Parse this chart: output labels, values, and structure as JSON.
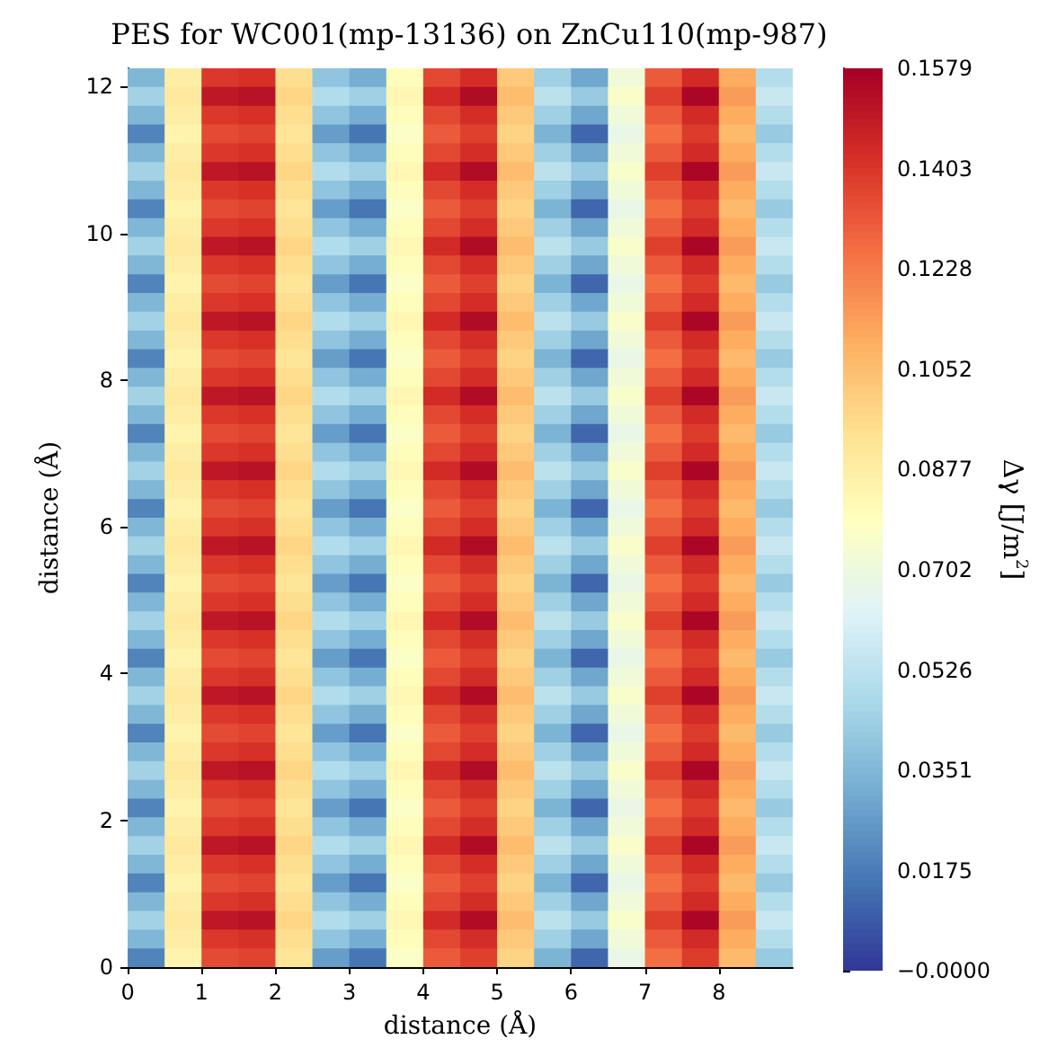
{
  "chart_data": {
    "type": "heatmap",
    "title": "PES for WC001(mp-13136) on ZnCu110(mp-987)",
    "xlabel": "distance (Å)",
    "ylabel": "distance (Å)",
    "clabel": "Δγ [J/m$^{2}$]",
    "xlim": [
      0,
      9.0
    ],
    "ylim": [
      0,
      12.25
    ],
    "xticks": [
      0,
      1,
      2,
      3,
      4,
      5,
      6,
      7,
      8
    ],
    "yticks": [
      0,
      2,
      4,
      6,
      8,
      10,
      12
    ],
    "clim": [
      0,
      0.1579
    ],
    "cticks": [
      {
        "value": 0,
        "label": "−0.0000"
      },
      0.0175,
      0.0351,
      0.0526,
      0.0702,
      0.0877,
      0.1052,
      0.1228,
      0.1403,
      0.1579
    ],
    "cells": [
      [
        0.035,
        0.088,
        0.14,
        0.142,
        0.095,
        0.04,
        0.032,
        0.08,
        0.136,
        0.143,
        0.102,
        0.044,
        0.03,
        0.072,
        0.131,
        0.144,
        0.111,
        0.05
      ],
      [
        0.045,
        0.09,
        0.15,
        0.152,
        0.098,
        0.049,
        0.044,
        0.083,
        0.144,
        0.154,
        0.106,
        0.052,
        0.042,
        0.076,
        0.138,
        0.156,
        0.115,
        0.056
      ],
      [
        0.035,
        0.088,
        0.14,
        0.142,
        0.095,
        0.04,
        0.032,
        0.08,
        0.136,
        0.143,
        0.102,
        0.044,
        0.03,
        0.072,
        0.131,
        0.144,
        0.111,
        0.05
      ],
      [
        0.02,
        0.085,
        0.135,
        0.137,
        0.092,
        0.027,
        0.016,
        0.077,
        0.131,
        0.138,
        0.099,
        0.034,
        0.012,
        0.068,
        0.126,
        0.139,
        0.107,
        0.042
      ],
      [
        0.035,
        0.088,
        0.14,
        0.142,
        0.095,
        0.04,
        0.032,
        0.08,
        0.136,
        0.143,
        0.102,
        0.044,
        0.03,
        0.072,
        0.131,
        0.144,
        0.111,
        0.05
      ],
      [
        0.045,
        0.09,
        0.15,
        0.152,
        0.098,
        0.049,
        0.044,
        0.083,
        0.144,
        0.154,
        0.106,
        0.052,
        0.042,
        0.076,
        0.138,
        0.156,
        0.115,
        0.056
      ],
      [
        0.035,
        0.088,
        0.14,
        0.142,
        0.095,
        0.04,
        0.032,
        0.08,
        0.136,
        0.143,
        0.102,
        0.044,
        0.03,
        0.072,
        0.131,
        0.144,
        0.111,
        0.05
      ],
      [
        0.02,
        0.085,
        0.135,
        0.137,
        0.092,
        0.027,
        0.016,
        0.077,
        0.131,
        0.138,
        0.099,
        0.034,
        0.012,
        0.068,
        0.126,
        0.139,
        0.107,
        0.042
      ],
      [
        0.035,
        0.088,
        0.14,
        0.142,
        0.095,
        0.04,
        0.032,
        0.08,
        0.136,
        0.143,
        0.102,
        0.044,
        0.03,
        0.072,
        0.131,
        0.144,
        0.111,
        0.05
      ],
      [
        0.045,
        0.09,
        0.15,
        0.152,
        0.098,
        0.049,
        0.044,
        0.083,
        0.144,
        0.154,
        0.106,
        0.052,
        0.042,
        0.076,
        0.138,
        0.156,
        0.115,
        0.056
      ],
      [
        0.035,
        0.088,
        0.14,
        0.142,
        0.095,
        0.04,
        0.032,
        0.08,
        0.136,
        0.143,
        0.102,
        0.044,
        0.03,
        0.072,
        0.131,
        0.144,
        0.111,
        0.05
      ],
      [
        0.02,
        0.085,
        0.135,
        0.137,
        0.092,
        0.027,
        0.016,
        0.077,
        0.131,
        0.138,
        0.099,
        0.034,
        0.012,
        0.068,
        0.126,
        0.139,
        0.107,
        0.042
      ],
      [
        0.035,
        0.088,
        0.14,
        0.142,
        0.095,
        0.04,
        0.032,
        0.08,
        0.136,
        0.143,
        0.102,
        0.044,
        0.03,
        0.072,
        0.131,
        0.144,
        0.111,
        0.05
      ],
      [
        0.045,
        0.09,
        0.15,
        0.152,
        0.098,
        0.049,
        0.044,
        0.083,
        0.144,
        0.154,
        0.106,
        0.052,
        0.042,
        0.076,
        0.138,
        0.156,
        0.115,
        0.056
      ],
      [
        0.035,
        0.088,
        0.14,
        0.142,
        0.095,
        0.04,
        0.032,
        0.08,
        0.136,
        0.143,
        0.102,
        0.044,
        0.03,
        0.072,
        0.131,
        0.144,
        0.111,
        0.05
      ],
      [
        0.02,
        0.085,
        0.135,
        0.137,
        0.092,
        0.027,
        0.016,
        0.077,
        0.131,
        0.138,
        0.099,
        0.034,
        0.012,
        0.068,
        0.126,
        0.139,
        0.107,
        0.042
      ],
      [
        0.035,
        0.088,
        0.14,
        0.142,
        0.095,
        0.04,
        0.032,
        0.08,
        0.136,
        0.143,
        0.102,
        0.044,
        0.03,
        0.072,
        0.131,
        0.144,
        0.111,
        0.05
      ],
      [
        0.045,
        0.09,
        0.15,
        0.152,
        0.098,
        0.049,
        0.044,
        0.083,
        0.144,
        0.154,
        0.106,
        0.052,
        0.042,
        0.076,
        0.138,
        0.156,
        0.115,
        0.056
      ],
      [
        0.035,
        0.088,
        0.14,
        0.142,
        0.095,
        0.04,
        0.032,
        0.08,
        0.136,
        0.143,
        0.102,
        0.044,
        0.03,
        0.072,
        0.131,
        0.144,
        0.111,
        0.05
      ],
      [
        0.02,
        0.085,
        0.135,
        0.137,
        0.092,
        0.027,
        0.016,
        0.077,
        0.131,
        0.138,
        0.099,
        0.034,
        0.012,
        0.068,
        0.126,
        0.139,
        0.107,
        0.042
      ],
      [
        0.035,
        0.088,
        0.14,
        0.142,
        0.095,
        0.04,
        0.032,
        0.08,
        0.136,
        0.143,
        0.102,
        0.044,
        0.03,
        0.072,
        0.131,
        0.144,
        0.111,
        0.05
      ],
      [
        0.045,
        0.09,
        0.15,
        0.152,
        0.098,
        0.049,
        0.044,
        0.083,
        0.144,
        0.154,
        0.106,
        0.052,
        0.042,
        0.076,
        0.138,
        0.156,
        0.115,
        0.056
      ],
      [
        0.035,
        0.088,
        0.14,
        0.142,
        0.095,
        0.04,
        0.032,
        0.08,
        0.136,
        0.143,
        0.102,
        0.044,
        0.03,
        0.072,
        0.131,
        0.144,
        0.111,
        0.05
      ],
      [
        0.02,
        0.085,
        0.135,
        0.137,
        0.092,
        0.027,
        0.016,
        0.077,
        0.131,
        0.138,
        0.099,
        0.034,
        0.012,
        0.068,
        0.126,
        0.139,
        0.107,
        0.042
      ],
      [
        0.035,
        0.088,
        0.14,
        0.142,
        0.095,
        0.04,
        0.032,
        0.08,
        0.136,
        0.143,
        0.102,
        0.044,
        0.03,
        0.072,
        0.131,
        0.144,
        0.111,
        0.05
      ],
      [
        0.045,
        0.09,
        0.15,
        0.152,
        0.098,
        0.049,
        0.044,
        0.083,
        0.144,
        0.154,
        0.106,
        0.052,
        0.042,
        0.076,
        0.138,
        0.156,
        0.115,
        0.056
      ],
      [
        0.035,
        0.088,
        0.14,
        0.142,
        0.095,
        0.04,
        0.032,
        0.08,
        0.136,
        0.143,
        0.102,
        0.044,
        0.03,
        0.072,
        0.131,
        0.144,
        0.111,
        0.05
      ],
      [
        0.02,
        0.085,
        0.135,
        0.137,
        0.092,
        0.027,
        0.016,
        0.077,
        0.131,
        0.138,
        0.099,
        0.034,
        0.012,
        0.068,
        0.126,
        0.139,
        0.107,
        0.042
      ],
      [
        0.035,
        0.088,
        0.14,
        0.142,
        0.095,
        0.04,
        0.032,
        0.08,
        0.136,
        0.143,
        0.102,
        0.044,
        0.03,
        0.072,
        0.131,
        0.144,
        0.111,
        0.05
      ],
      [
        0.045,
        0.09,
        0.15,
        0.152,
        0.098,
        0.049,
        0.044,
        0.083,
        0.144,
        0.154,
        0.106,
        0.052,
        0.042,
        0.076,
        0.138,
        0.156,
        0.115,
        0.056
      ],
      [
        0.035,
        0.088,
        0.14,
        0.142,
        0.095,
        0.04,
        0.032,
        0.08,
        0.136,
        0.143,
        0.102,
        0.044,
        0.03,
        0.072,
        0.131,
        0.144,
        0.111,
        0.05
      ],
      [
        0.02,
        0.085,
        0.135,
        0.137,
        0.092,
        0.027,
        0.016,
        0.077,
        0.131,
        0.138,
        0.099,
        0.034,
        0.012,
        0.068,
        0.126,
        0.139,
        0.107,
        0.042
      ],
      [
        0.035,
        0.088,
        0.14,
        0.142,
        0.095,
        0.04,
        0.032,
        0.08,
        0.136,
        0.143,
        0.102,
        0.044,
        0.03,
        0.072,
        0.131,
        0.144,
        0.111,
        0.05
      ],
      [
        0.045,
        0.09,
        0.15,
        0.152,
        0.098,
        0.049,
        0.044,
        0.083,
        0.144,
        0.154,
        0.106,
        0.052,
        0.042,
        0.076,
        0.138,
        0.156,
        0.115,
        0.056
      ],
      [
        0.035,
        0.088,
        0.14,
        0.142,
        0.095,
        0.04,
        0.032,
        0.08,
        0.136,
        0.143,
        0.102,
        0.044,
        0.03,
        0.072,
        0.131,
        0.144,
        0.111,
        0.05
      ],
      [
        0.02,
        0.085,
        0.135,
        0.137,
        0.092,
        0.027,
        0.016,
        0.077,
        0.131,
        0.138,
        0.099,
        0.034,
        0.012,
        0.068,
        0.126,
        0.139,
        0.107,
        0.042
      ],
      [
        0.035,
        0.088,
        0.14,
        0.142,
        0.095,
        0.04,
        0.032,
        0.08,
        0.136,
        0.143,
        0.102,
        0.044,
        0.03,
        0.072,
        0.131,
        0.144,
        0.111,
        0.05
      ],
      [
        0.045,
        0.09,
        0.15,
        0.152,
        0.098,
        0.049,
        0.044,
        0.083,
        0.144,
        0.154,
        0.106,
        0.052,
        0.042,
        0.076,
        0.138,
        0.156,
        0.115,
        0.056
      ],
      [
        0.035,
        0.088,
        0.14,
        0.142,
        0.095,
        0.04,
        0.032,
        0.08,
        0.136,
        0.143,
        0.102,
        0.044,
        0.03,
        0.072,
        0.131,
        0.144,
        0.111,
        0.05
      ],
      [
        0.02,
        0.085,
        0.135,
        0.137,
        0.092,
        0.027,
        0.016,
        0.077,
        0.131,
        0.138,
        0.099,
        0.034,
        0.012,
        0.068,
        0.126,
        0.139,
        0.107,
        0.042
      ],
      [
        0.035,
        0.088,
        0.14,
        0.142,
        0.095,
        0.04,
        0.032,
        0.08,
        0.136,
        0.143,
        0.102,
        0.044,
        0.03,
        0.072,
        0.131,
        0.144,
        0.111,
        0.05
      ],
      [
        0.045,
        0.09,
        0.15,
        0.152,
        0.098,
        0.049,
        0.044,
        0.083,
        0.144,
        0.154,
        0.106,
        0.052,
        0.042,
        0.076,
        0.138,
        0.156,
        0.115,
        0.056
      ],
      [
        0.035,
        0.088,
        0.14,
        0.142,
        0.095,
        0.04,
        0.032,
        0.08,
        0.136,
        0.143,
        0.102,
        0.044,
        0.03,
        0.072,
        0.131,
        0.144,
        0.111,
        0.05
      ],
      [
        0.02,
        0.085,
        0.135,
        0.137,
        0.092,
        0.027,
        0.016,
        0.077,
        0.131,
        0.138,
        0.099,
        0.034,
        0.012,
        0.068,
        0.126,
        0.139,
        0.107,
        0.042
      ],
      [
        0.035,
        0.088,
        0.14,
        0.142,
        0.095,
        0.04,
        0.032,
        0.08,
        0.136,
        0.143,
        0.102,
        0.044,
        0.03,
        0.072,
        0.131,
        0.144,
        0.111,
        0.05
      ],
      [
        0.045,
        0.09,
        0.15,
        0.152,
        0.098,
        0.049,
        0.044,
        0.083,
        0.144,
        0.154,
        0.106,
        0.052,
        0.042,
        0.076,
        0.138,
        0.156,
        0.115,
        0.056
      ],
      [
        0.035,
        0.088,
        0.14,
        0.142,
        0.095,
        0.04,
        0.032,
        0.08,
        0.136,
        0.143,
        0.102,
        0.044,
        0.03,
        0.072,
        0.131,
        0.144,
        0.111,
        0.05
      ],
      [
        0.02,
        0.085,
        0.135,
        0.137,
        0.092,
        0.027,
        0.016,
        0.077,
        0.131,
        0.138,
        0.099,
        0.034,
        0.012,
        0.068,
        0.126,
        0.139,
        0.107,
        0.042
      ]
    ]
  }
}
